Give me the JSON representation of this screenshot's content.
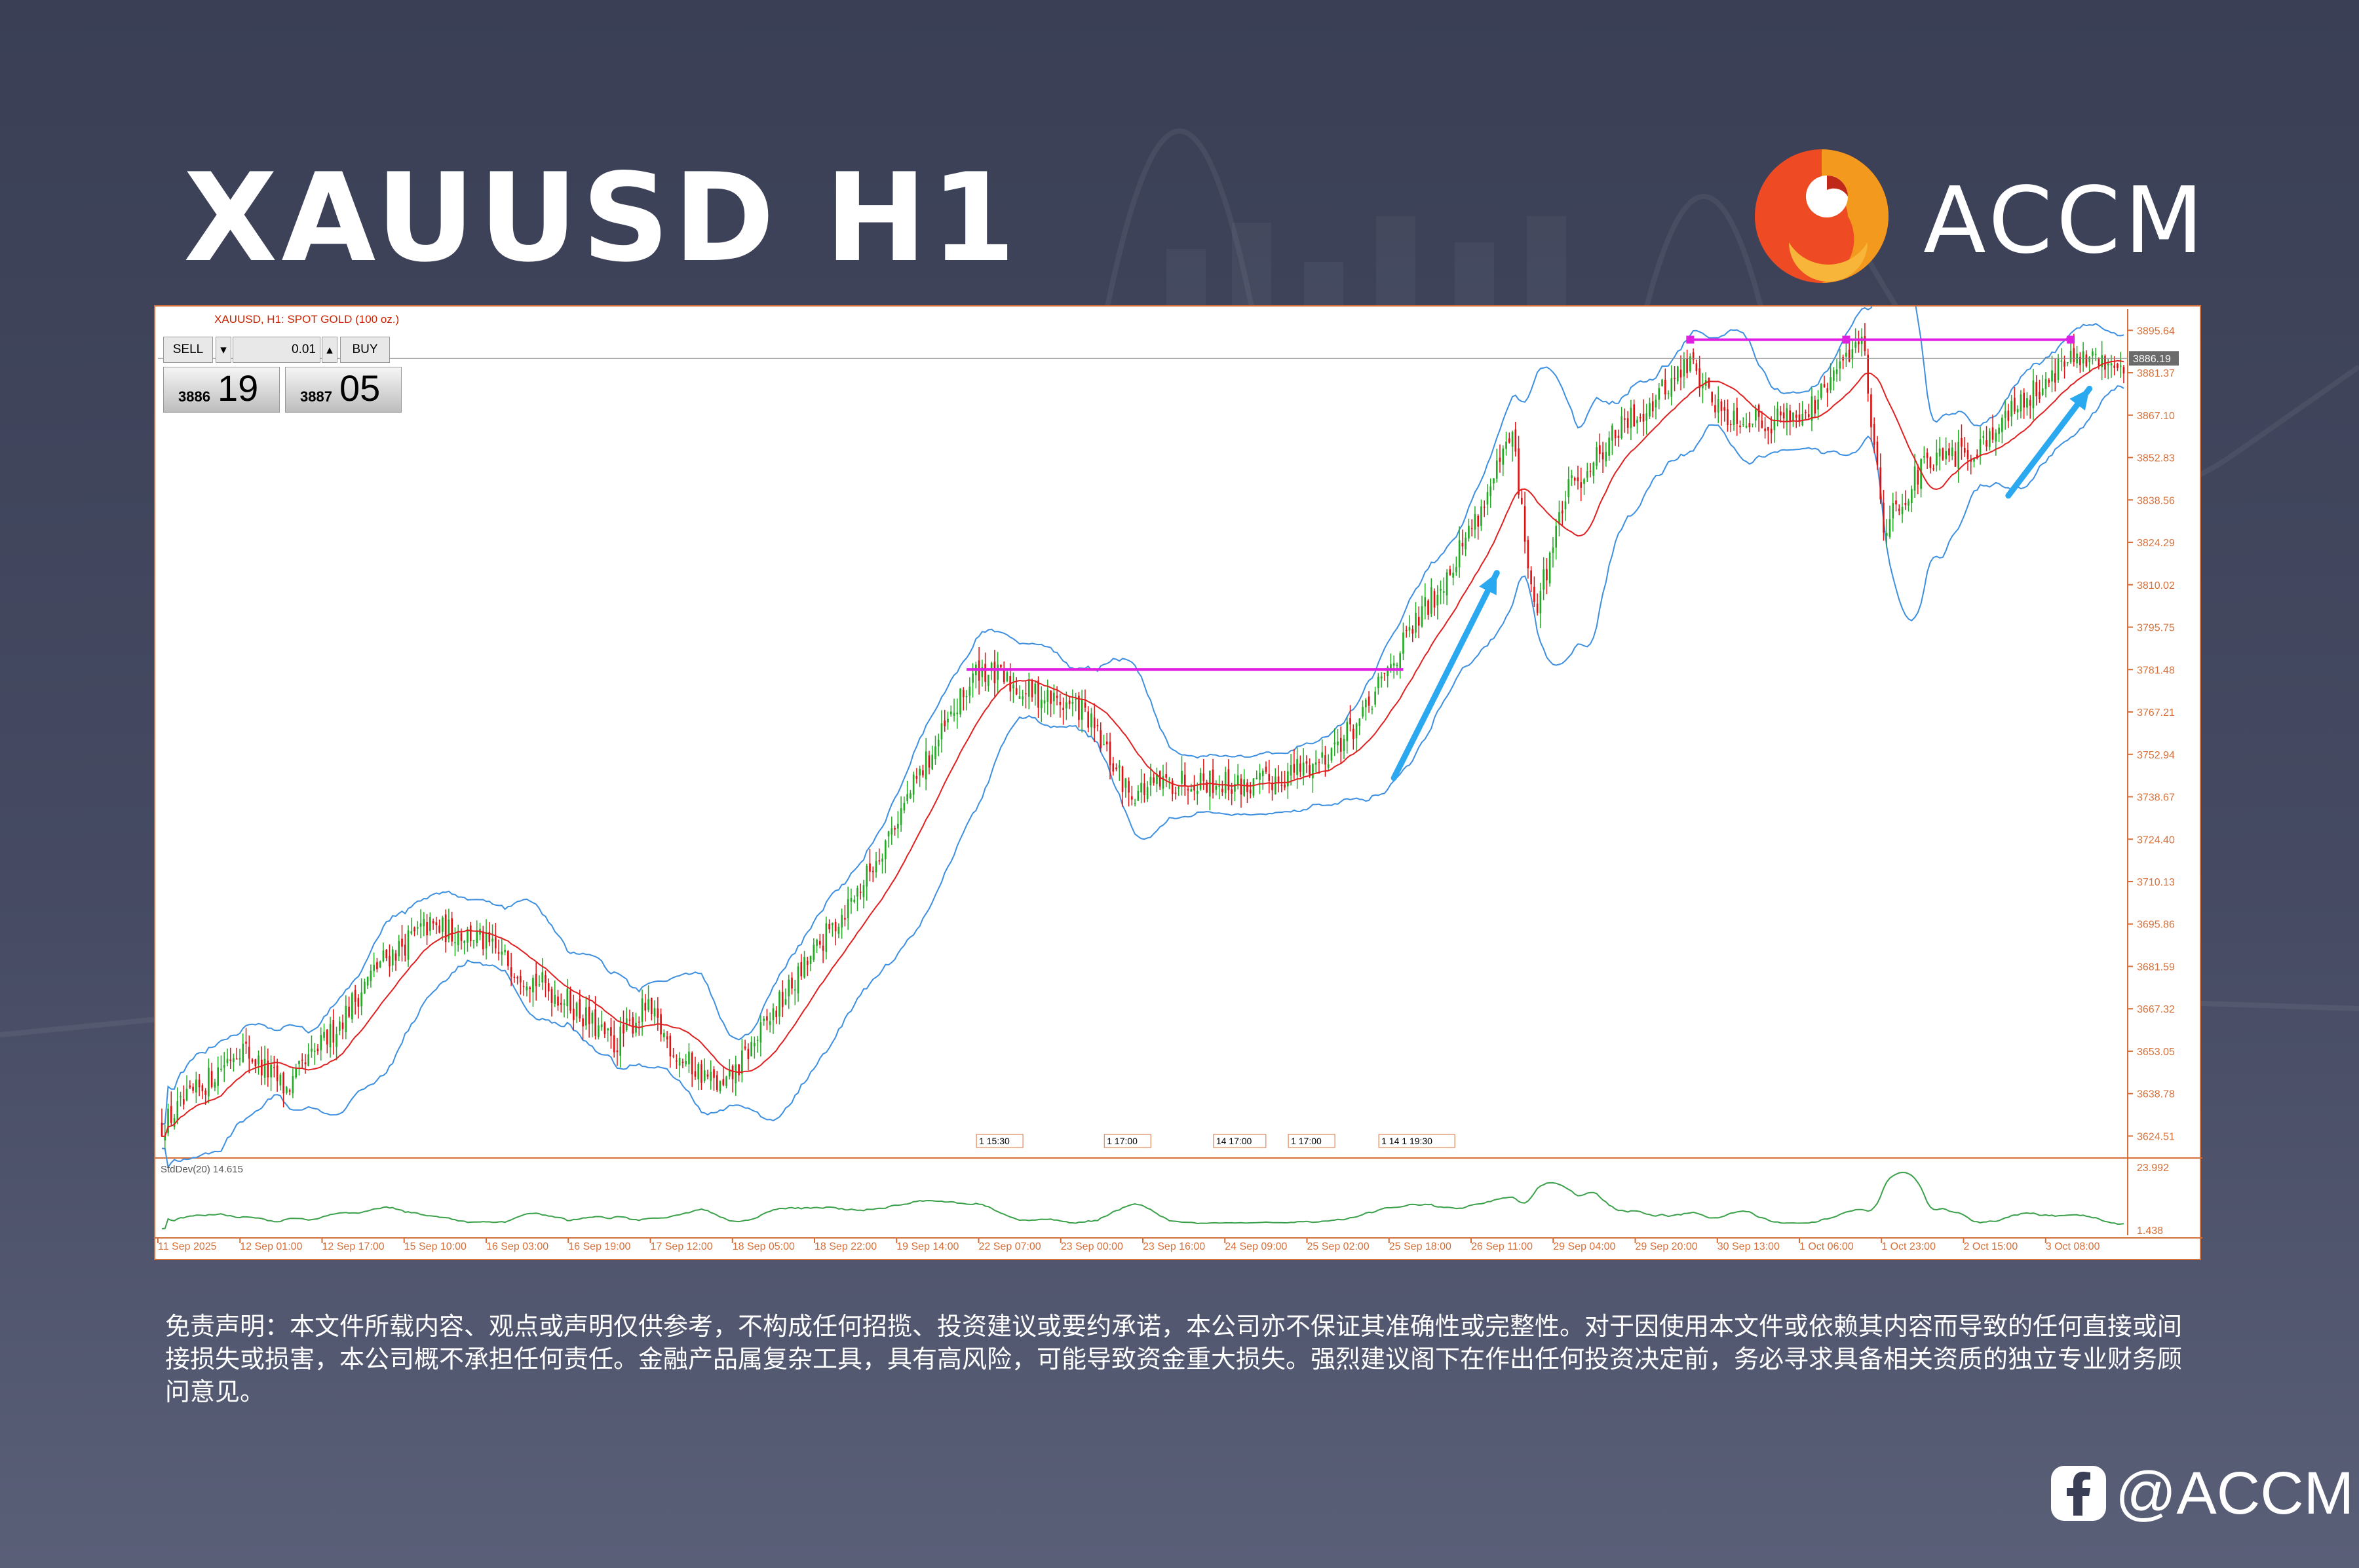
{
  "header": {
    "title": "XAUUSD H1",
    "brand": "ACCM"
  },
  "chart_header": {
    "symbol_label": "XAUUSD, H1: SPOT GOLD (100 oz.)"
  },
  "trade_panel": {
    "sell_label": "SELL",
    "buy_label": "BUY",
    "lot": "0.01",
    "sell_small": "3886",
    "sell_big": "19",
    "buy_small": "3887",
    "buy_big": "05"
  },
  "chart_data": {
    "type": "candlestick",
    "symbol": "XAUUSD",
    "timeframe": "H1",
    "y_ticks": [
      "3895.64",
      "3881.37",
      "3867.10",
      "3852.83",
      "3838.56",
      "3824.29",
      "3810.02",
      "3795.75",
      "3781.48",
      "3767.21",
      "3752.94",
      "3738.67",
      "3724.40",
      "3710.13",
      "3695.86",
      "3681.59",
      "3667.32",
      "3653.05",
      "3638.78",
      "3624.51"
    ],
    "ylim": [
      3618,
      3901
    ],
    "current_price": "3886.19",
    "x_labels": [
      "11 Sep 2025",
      "12 Sep 01:00",
      "12 Sep 17:00",
      "15 Sep 10:00",
      "16 Sep 03:00",
      "16 Sep 19:00",
      "17 Sep 12:00",
      "18 Sep 05:00",
      "18 Sep 22:00",
      "19 Sep 14:00",
      "22 Sep 07:00",
      "23 Sep 00:00",
      "23 Sep 16:00",
      "24 Sep 09:00",
      "25 Sep 02:00",
      "25 Sep 18:00",
      "26 Sep 11:00",
      "29 Sep 04:00",
      "29 Sep 20:00",
      "30 Sep 13:00",
      "1 Oct 06:00",
      "1 Oct 23:00",
      "2 Oct 15:00",
      "3 Oct 08:00"
    ],
    "price_path": [
      [
        0,
        3628
      ],
      [
        12,
        3640
      ],
      [
        25,
        3655
      ],
      [
        40,
        3640
      ],
      [
        55,
        3660
      ],
      [
        70,
        3683
      ],
      [
        85,
        3695
      ],
      [
        100,
        3692
      ],
      [
        115,
        3680
      ],
      [
        130,
        3670
      ],
      [
        145,
        3655
      ],
      [
        155,
        3668
      ],
      [
        165,
        3652
      ],
      [
        180,
        3640
      ],
      [
        200,
        3672
      ],
      [
        225,
        3710
      ],
      [
        245,
        3750
      ],
      [
        262,
        3782
      ],
      [
        275,
        3775
      ],
      [
        295,
        3768
      ],
      [
        310,
        3740
      ],
      [
        330,
        3745
      ],
      [
        350,
        3742
      ],
      [
        370,
        3750
      ],
      [
        385,
        3765
      ],
      [
        395,
        3785
      ],
      [
        410,
        3810
      ],
      [
        425,
        3840
      ],
      [
        433,
        3860
      ],
      [
        440,
        3800
      ],
      [
        450,
        3840
      ],
      [
        465,
        3860
      ],
      [
        478,
        3872
      ],
      [
        490,
        3885
      ],
      [
        500,
        3868
      ],
      [
        515,
        3865
      ],
      [
        530,
        3870
      ],
      [
        545,
        3895
      ],
      [
        552,
        3830
      ],
      [
        565,
        3850
      ],
      [
        580,
        3855
      ],
      [
        595,
        3870
      ],
      [
        610,
        3885
      ]
    ],
    "resistance_levels": [
      {
        "price": 3781.5
      },
      {
        "price": 3892.5
      }
    ],
    "event_markers": [
      "1 15:30",
      "1 17:00",
      "14 17:00",
      "1 17:00",
      "1 14 1 19:30"
    ],
    "indicator": {
      "label": "StdDev(20) 14.615",
      "y_max": "23.992",
      "y_min": "1.438"
    },
    "colors": {
      "bull": "#22aa22",
      "bear": "#dd1111",
      "bands": "#3d8fe0",
      "ma": "#e02020",
      "stddev": "#3aa04a",
      "level": "#e020e0",
      "arrow": "#2aa8f0",
      "axis_text": "#d5703a"
    }
  },
  "disclaimer": "免责声明：本文件所载内容、观点或声明仅供参考，不构成任何招揽、投资建议或要约承诺，本公司亦不保证其准确性或完整性。对于因使用本文件或依赖其内容而导致的任何直接或间接损失或损害，本公司概不承担任何责任。金融产品属复杂工具，具有高风险，可能导致资金重大损失。强烈建议阁下在作出任何投资决定前，务必寻求具备相关资质的独立专业财务顾问意见。",
  "social": {
    "handle": "@ACCM"
  }
}
